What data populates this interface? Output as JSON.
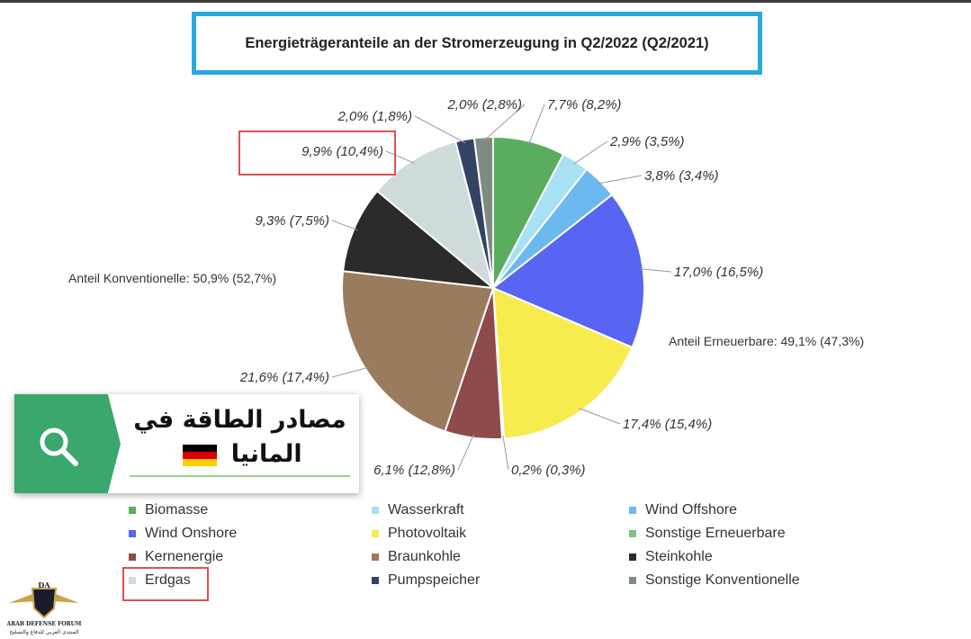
{
  "title": "Energieträgeranteile an der Stromerzeugung in Q2/2022 (Q2/2021)",
  "chart_data": {
    "type": "pie",
    "slices": [
      {
        "name": "Biomasse",
        "value": 7.7,
        "prev": 8.2,
        "label": "7,7% (8,2%)",
        "color": "#5aad5e"
      },
      {
        "name": "Wasserkraft",
        "value": 2.9,
        "prev": 3.5,
        "label": "2,9% (3,5%)",
        "color": "#a6e1f4"
      },
      {
        "name": "Wind Offshore",
        "value": 3.8,
        "prev": 3.4,
        "label": "3,8% (3,4%)",
        "color": "#6cb9f0"
      },
      {
        "name": "Wind Onshore",
        "value": 17.0,
        "prev": 16.5,
        "label": "17,0% (16,5%)",
        "color": "#5865f2"
      },
      {
        "name": "Photovoltaik",
        "value": 17.4,
        "prev": 15.4,
        "label": "17,4% (15,4%)",
        "color": "#f7ec4e"
      },
      {
        "name": "Sonstige Erneuerbare",
        "value": 0.2,
        "prev": 0.3,
        "label": "0,2% (0,3%)",
        "color": "#7cc57c"
      },
      {
        "name": "Kernenergie",
        "value": 6.1,
        "prev": 12.8,
        "label": "6,1% (12,8%)",
        "color": "#8e4b4b"
      },
      {
        "name": "Braunkohle",
        "value": 21.6,
        "prev": 17.4,
        "label": "21,6% (17,4%)",
        "color": "#9b7b5e"
      },
      {
        "name": "Steinkohle",
        "value": 9.3,
        "prev": 7.5,
        "label": "9,3% (7,5%)",
        "color": "#2b2b2b"
      },
      {
        "name": "Erdgas",
        "value": 9.9,
        "prev": 10.4,
        "label": "9,9% (10,4%)",
        "color": "#cfdbdb"
      },
      {
        "name": "Pumpspeicher",
        "value": 2.0,
        "prev": 1.8,
        "label": "2,0% (1,8%)",
        "color": "#344264"
      },
      {
        "name": "Sonstige Konventionelle",
        "value": 2.0,
        "prev": 2.8,
        "label": "2,0% (2,8%)",
        "color": "#7f8c82"
      }
    ],
    "group_labels": {
      "renewable": "Anteil Erneuerbare: 49,1% (47,3%)",
      "conventional": "Anteil Konventionelle: 50,9% (52,7%)"
    }
  },
  "legend_order": [
    "Biomasse",
    "Wasserkraft",
    "Wind Offshore",
    "Wind Onshore",
    "Photovoltaik",
    "Sonstige Erneuerbare",
    "Kernenergie",
    "Braunkohle",
    "Steinkohle",
    "Erdgas",
    "Pumpspeicher",
    "Sonstige Konventionelle"
  ],
  "overlay": {
    "text_line1": "مصادر الطاقة في",
    "text_line2": "المانيا",
    "icon": "search-icon",
    "accent": "#3aa76d"
  },
  "watermark": {
    "line1": "ARAB DEFENSE FORUM",
    "line2": "المنتدى العربي للدفاع والتسليح",
    "mark": "DA"
  }
}
